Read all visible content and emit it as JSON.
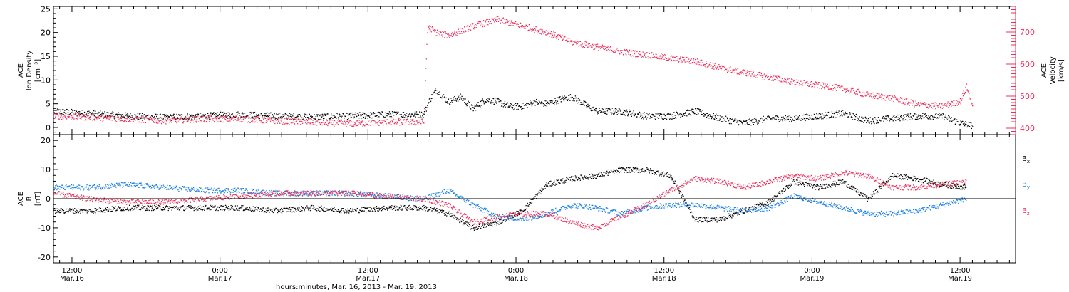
{
  "chart_data": [
    {
      "type": "scatter",
      "panel": "top",
      "ylabel_left": [
        "ACE",
        "Ion Density",
        "[cm⁻³]"
      ],
      "ylabel_right": [
        "ACE",
        "Velocity",
        "[km/s]"
      ],
      "ylim_left": [
        -1.5,
        25.5
      ],
      "ylim_right": [
        380,
        780
      ],
      "yticks_left": [
        0,
        5,
        10,
        15,
        20,
        25
      ],
      "yticks_right": [
        400,
        500,
        600,
        700
      ],
      "xlim_hours": [
        0,
        78
      ],
      "colors": {
        "density": "#000000",
        "velocity": "#e8305a"
      },
      "series": [
        {
          "key": "density",
          "axis": "left",
          "color": "#000000",
          "spread": 0.7,
          "x": [
            0,
            3,
            6,
            9,
            12,
            15,
            18,
            21,
            24,
            27,
            30,
            30.5,
            31,
            32,
            33,
            34,
            35,
            36,
            37,
            38,
            39,
            40,
            41,
            42,
            44,
            46,
            48,
            50,
            52,
            54,
            56,
            58,
            60,
            62,
            64,
            66,
            68,
            70,
            72,
            73.5,
            74.5
          ],
          "values": [
            3.5,
            3.0,
            2.5,
            2.2,
            2.5,
            2.8,
            2.5,
            2.3,
            2.5,
            2.8,
            2.8,
            6.0,
            8.0,
            5.5,
            6.5,
            4.0,
            6.0,
            5.5,
            4.5,
            4.5,
            5.5,
            5.0,
            6.0,
            6.5,
            3.5,
            3.5,
            2.5,
            2.5,
            3.5,
            2.0,
            1.0,
            2.0,
            2.0,
            2.5,
            3.0,
            1.5,
            2.0,
            2.5,
            2.5,
            1.0,
            0.5
          ]
        },
        {
          "key": "velocity",
          "axis": "right",
          "color": "#e8305a",
          "spread": 10,
          "x": [
            0,
            3,
            6,
            9,
            12,
            15,
            18,
            21,
            24,
            27,
            30,
            30.3,
            31,
            32,
            34,
            36,
            38,
            40,
            42,
            44,
            46,
            48,
            50,
            52,
            54,
            56,
            58,
            60,
            62,
            64,
            66,
            68,
            70,
            72,
            73.5,
            74,
            74.5
          ],
          "values": [
            440,
            435,
            430,
            425,
            430,
            430,
            425,
            420,
            415,
            420,
            420,
            720,
            700,
            690,
            720,
            740,
            720,
            700,
            670,
            655,
            640,
            630,
            620,
            610,
            590,
            575,
            560,
            545,
            535,
            525,
            505,
            495,
            475,
            470,
            485,
            530,
            470
          ]
        }
      ]
    },
    {
      "type": "scatter",
      "panel": "bottom",
      "ylabel_left": [
        "ACE",
        "B",
        "[nT]"
      ],
      "ylim": [
        -22,
        22
      ],
      "yticks": [
        -20,
        -10,
        0,
        10,
        20
      ],
      "xlim_hours": [
        0,
        78
      ],
      "legend": [
        "Bx",
        "By",
        "Bz"
      ],
      "legend_position": "right",
      "colors": {
        "Bx": "#000000",
        "By": "#1a7fe0",
        "Bz": "#e8305a"
      },
      "series": [
        {
          "name": "Bx",
          "color": "#000000",
          "spread": 0.9,
          "x": [
            0,
            3,
            6,
            9,
            12,
            15,
            18,
            21,
            24,
            27,
            30,
            32,
            34,
            36,
            38,
            40,
            42,
            44,
            46,
            48,
            50,
            52,
            54,
            56,
            58,
            60,
            62,
            64,
            66,
            68,
            70,
            72,
            74
          ],
          "values": [
            -4,
            -4,
            -3,
            -3,
            -3,
            -3,
            -4,
            -3,
            -4,
            -3,
            -3,
            -5,
            -10,
            -8,
            -4,
            5,
            7,
            8,
            10,
            10,
            8,
            -7,
            -7,
            -4,
            -1,
            6,
            4,
            6,
            0,
            8,
            7,
            5,
            4
          ]
        },
        {
          "name": "By",
          "color": "#1a7fe0",
          "spread": 0.9,
          "x": [
            0,
            3,
            6,
            9,
            12,
            15,
            18,
            21,
            24,
            27,
            30,
            32,
            34,
            36,
            38,
            40,
            42,
            44,
            46,
            48,
            50,
            52,
            54,
            56,
            58,
            60,
            62,
            64,
            66,
            68,
            70,
            72,
            74
          ],
          "values": [
            4,
            4,
            5,
            4,
            3,
            3,
            2,
            2,
            2,
            1,
            0,
            3,
            -2,
            -6,
            -7,
            -5,
            -2,
            -3,
            -5,
            -3,
            -2,
            -2,
            -3,
            -4,
            -3,
            1,
            -1,
            -3,
            -5,
            -5,
            -4,
            -2,
            0
          ]
        },
        {
          "name": "Bz",
          "color": "#e8305a",
          "spread": 0.9,
          "x": [
            0,
            3,
            6,
            9,
            12,
            15,
            18,
            21,
            24,
            27,
            30,
            32,
            34,
            36,
            38,
            40,
            42,
            44,
            46,
            48,
            50,
            52,
            54,
            56,
            58,
            60,
            62,
            64,
            66,
            68,
            70,
            72,
            74
          ],
          "values": [
            2,
            0,
            -1,
            -1,
            0,
            1,
            2,
            2,
            2,
            1,
            0,
            -2,
            -8,
            -6,
            -5,
            -5,
            -8,
            -10,
            -6,
            -2,
            3,
            7,
            6,
            4,
            6,
            8,
            7,
            9,
            8,
            4,
            4,
            5,
            6
          ]
        }
      ]
    }
  ],
  "axis": {
    "xtick_times": [
      "12:00",
      "0:00",
      "12:00",
      "0:00",
      "12:00",
      "0:00",
      "12:00"
    ],
    "xtick_dates": [
      "Mar.16",
      "Mar.17",
      "Mar.17",
      "Mar.18",
      "Mar.18",
      "Mar.19",
      "Mar.19"
    ],
    "xtick_hours": [
      1.5,
      13.5,
      25.5,
      37.5,
      49.5,
      61.5,
      73.5
    ],
    "xlabel": "hours:minutes, Mar. 16, 2013 - Mar. 19, 2013"
  },
  "labels": {
    "top_left": {
      "line1": "ACE",
      "line2": "Ion Density",
      "line3": "[cm⁻³]"
    },
    "top_right": {
      "line1": "ACE",
      "line2": "Velocity",
      "line3": "[km/s]"
    },
    "bottom_left": {
      "line1": "ACE",
      "line2": "B",
      "line3": "[nT]"
    },
    "legend_bx": "B",
    "legend_bx_sub": "x",
    "legend_by": "B",
    "legend_by_sub": "y",
    "legend_bz": "B",
    "legend_bz_sub": "z"
  }
}
